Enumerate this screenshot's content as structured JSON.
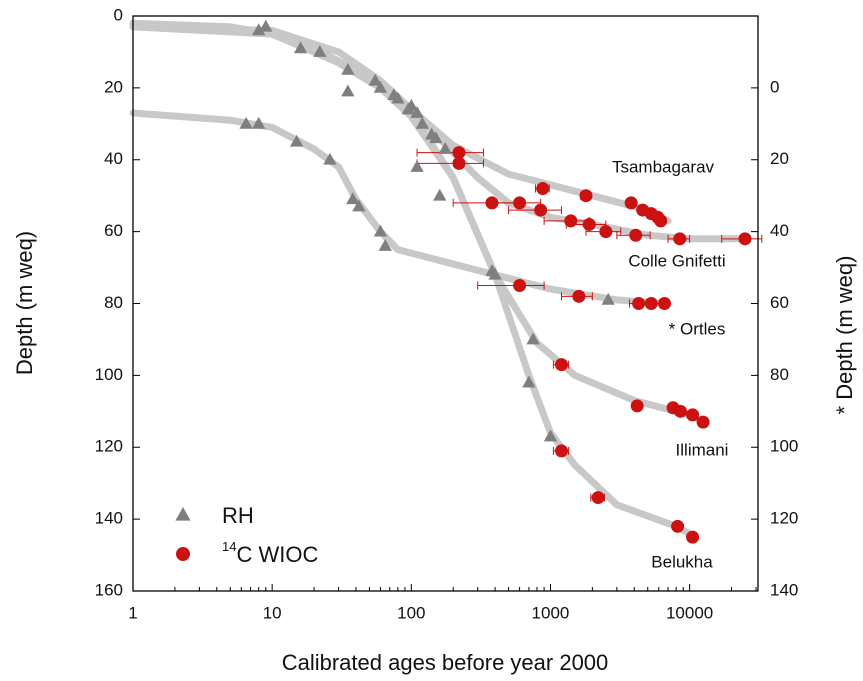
{
  "chart_data": {
    "type": "scatter",
    "x_label": "Calibrated ages before year 2000",
    "y_label": "Depth (m weq)",
    "y2_label": "* Depth (m weq)",
    "x_log": true,
    "xlim": [
      1,
      31000
    ],
    "xticks": [
      1,
      10,
      100,
      1000,
      10000
    ],
    "ylim": [
      0,
      160
    ],
    "yticks": [
      0,
      20,
      40,
      60,
      80,
      100,
      120,
      140,
      160
    ],
    "y2lim": [
      -20,
      140
    ],
    "y2ticks": [
      0,
      20,
      40,
      60,
      80,
      100,
      120,
      140
    ],
    "y_inverted": true,
    "legend": [
      {
        "name": "RH",
        "color": "#7f7f7f",
        "marker": "triangle"
      },
      {
        "name": "C WIOC",
        "superscript": "14",
        "color": "#cc1111",
        "marker": "circle"
      }
    ],
    "fit_color": "#c8c8c8",
    "sites": [
      {
        "name": "Tsambagarav",
        "axis": "y",
        "fit": {
          "x": [
            1,
            5,
            10,
            20,
            50,
            100,
            200,
            500,
            1000,
            2000,
            5000,
            7000
          ],
          "y": [
            2,
            3,
            5,
            9,
            17,
            26,
            36,
            44,
            47,
            50,
            54,
            57
          ]
        },
        "rh": {
          "x": [
            8,
            9,
            16,
            22,
            35,
            55,
            75,
            95,
            110,
            140
          ],
          "y": [
            4,
            3,
            9,
            10,
            15,
            18,
            22,
            26,
            27,
            33
          ]
        },
        "wioc": {
          "x": [
            220,
            880,
            1800,
            3800,
            4600,
            5300,
            5900,
            6200
          ],
          "y": [
            38,
            48,
            50,
            52,
            54,
            55,
            56,
            57
          ],
          "xerr": [
            110,
            100,
            150,
            300,
            300,
            300,
            300,
            300
          ]
        }
      },
      {
        "name": "Colle Gnifetti",
        "axis": "y",
        "fit": {
          "x": [
            1,
            10,
            30,
            60,
            100,
            150,
            200,
            300,
            500,
            1000,
            2000,
            5000,
            10000,
            25000
          ],
          "y": [
            3,
            4,
            10,
            18,
            26,
            33,
            38,
            45,
            52,
            56,
            58,
            61,
            62,
            62
          ]
        },
        "rh": {
          "x": [
            35,
            60,
            80,
            100,
            120,
            150,
            175
          ],
          "y": [
            21,
            20,
            23,
            25,
            30,
            34,
            37
          ]
        },
        "wioc": {
          "x": [
            220,
            380,
            600,
            850,
            1400,
            1900,
            2500,
            4100,
            8500,
            25000
          ],
          "y": [
            41,
            52,
            52,
            54,
            57,
            58,
            60,
            61,
            62,
            62
          ],
          "xerr": [
            110,
            180,
            250,
            350,
            500,
            600,
            700,
            1100,
            1500,
            8000
          ]
        }
      },
      {
        "name": "* Ortles",
        "axis": "y2",
        "fit": {
          "x": [
            1,
            5,
            10,
            20,
            30,
            40,
            60,
            80,
            200,
            500,
            1000,
            3000,
            6600
          ],
          "y": [
            7,
            9,
            11,
            17,
            22,
            31,
            40,
            45,
            49,
            53,
            56,
            59,
            60
          ]
        },
        "rh": {
          "x": [
            6.5,
            8,
            15,
            26,
            38,
            42,
            60,
            65,
            400,
            2600
          ],
          "y": [
            10,
            10,
            15,
            20,
            31,
            33,
            40,
            44,
            52,
            59
          ]
        },
        "wioc": {
          "x": [
            600,
            1600,
            4300,
            5300,
            6600
          ],
          "y": [
            55,
            58,
            60,
            60,
            60
          ],
          "xerr": [
            300,
            400,
            600,
            800,
            400
          ]
        }
      },
      {
        "name": "Illimani",
        "axis": "y",
        "fit": {
          "x": [
            1,
            10,
            30,
            60,
            100,
            200,
            400,
            800,
            1500,
            4000,
            10000,
            13000
          ],
          "y": [
            3,
            5,
            13,
            20,
            27,
            45,
            72,
            91,
            100,
            107,
            111,
            113
          ]
        },
        "rh": {
          "x": [
            160,
            380,
            750
          ],
          "y": [
            50,
            71,
            90
          ]
        },
        "wioc": {
          "x": [
            1200,
            4200,
            7600,
            8600,
            10500,
            12500
          ],
          "y": [
            97,
            108.5,
            109,
            110,
            111,
            113
          ],
          "xerr": [
            150,
            300,
            600,
            700,
            800,
            900
          ]
        }
      },
      {
        "name": "Belukha",
        "axis": "y",
        "fit": {
          "x": [
            1,
            10,
            30,
            60,
            100,
            200,
            400,
            700,
            1000,
            1500,
            3000,
            8000,
            11000
          ],
          "y": [
            3,
            5,
            13,
            20,
            28,
            45,
            72,
            100,
            116,
            125,
            136,
            142,
            145
          ]
        },
        "rh": {
          "x": [
            110,
            700,
            1000
          ],
          "y": [
            42,
            102,
            117
          ]
        },
        "wioc": {
          "x": [
            1200,
            2200,
            8200,
            10500
          ],
          "y": [
            121,
            134,
            142,
            145
          ],
          "xerr": [
            150,
            250,
            600,
            800
          ]
        }
      }
    ]
  }
}
